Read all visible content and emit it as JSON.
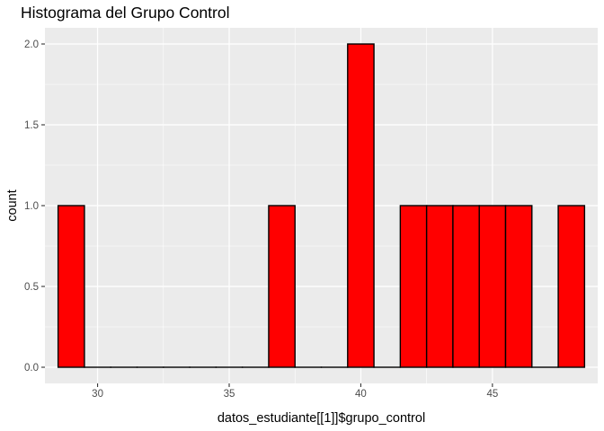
{
  "chart_data": {
    "type": "bar",
    "title": "Histograma del Grupo Control",
    "xlabel": "datos_estudiante[[1]]$grupo_control",
    "ylabel": "count",
    "xlim": [
      28.0,
      49.0
    ],
    "ylim": [
      -0.1,
      2.1
    ],
    "x_ticks": [
      30,
      35,
      40,
      45
    ],
    "x_tick_labels": [
      "30",
      "35",
      "40",
      "45"
    ],
    "y_ticks": [
      0.0,
      0.5,
      1.0,
      1.5,
      2.0
    ],
    "y_tick_labels": [
      "0.0",
      "0.5",
      "1.0",
      "1.5",
      "2.0"
    ],
    "grid": true,
    "bins": [
      {
        "x": 29,
        "count": 1
      },
      {
        "x": 30,
        "count": 0
      },
      {
        "x": 31,
        "count": 0
      },
      {
        "x": 32,
        "count": 0
      },
      {
        "x": 33,
        "count": 0
      },
      {
        "x": 34,
        "count": 0
      },
      {
        "x": 35,
        "count": 0
      },
      {
        "x": 36,
        "count": 0
      },
      {
        "x": 37,
        "count": 1
      },
      {
        "x": 38,
        "count": 0
      },
      {
        "x": 39,
        "count": 0
      },
      {
        "x": 40,
        "count": 2
      },
      {
        "x": 41,
        "count": 0
      },
      {
        "x": 42,
        "count": 1
      },
      {
        "x": 43,
        "count": 1
      },
      {
        "x": 44,
        "count": 1
      },
      {
        "x": 45,
        "count": 1
      },
      {
        "x": 46,
        "count": 1
      },
      {
        "x": 47,
        "count": 0
      },
      {
        "x": 48,
        "count": 1
      }
    ],
    "bin_width": 1,
    "fill_color": "#ff0000",
    "outline_color": "#000000",
    "panel_color": "#ebebeb",
    "grid_color": "#ffffff"
  }
}
